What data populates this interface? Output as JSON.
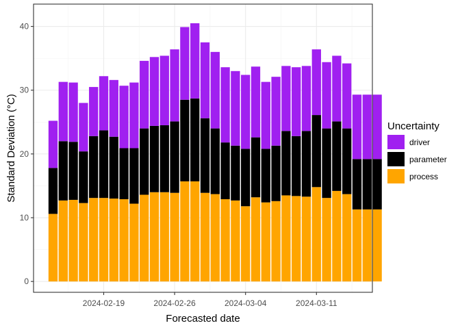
{
  "chart_data": {
    "type": "bar",
    "stacked": true,
    "title": "",
    "xlabel": "Forecasted date",
    "ylabel": "Standard Deviation (°C)",
    "ylim": [
      -1.7,
      43.5
    ],
    "yticks": [
      0,
      10,
      20,
      30,
      40
    ],
    "grid": true,
    "legend_position": "right",
    "legend_title": "Uncertainty",
    "x_tick_labels": [
      "2024-02-19",
      "2024-02-26",
      "2024-03-04",
      "2024-03-11"
    ],
    "x_tick_dates": [
      "2024-02-19",
      "2024-02-26",
      "2024-03-04",
      "2024-03-11"
    ],
    "categories": [
      "2024-02-14",
      "2024-02-15",
      "2024-02-16",
      "2024-02-17",
      "2024-02-18",
      "2024-02-19",
      "2024-02-20",
      "2024-02-21",
      "2024-02-22",
      "2024-02-23",
      "2024-02-24",
      "2024-02-25",
      "2024-02-26",
      "2024-02-27",
      "2024-02-28",
      "2024-02-29",
      "2024-03-01",
      "2024-03-02",
      "2024-03-03",
      "2024-03-04",
      "2024-03-05",
      "2024-03-06",
      "2024-03-07",
      "2024-03-08",
      "2024-03-09",
      "2024-03-10",
      "2024-03-11",
      "2024-03-12",
      "2024-03-13",
      "2024-03-14",
      "2024-03-15",
      "2024-03-16",
      "2024-03-17"
    ],
    "series": [
      {
        "name": "process",
        "color": "#FFA500",
        "values": [
          10.6,
          12.7,
          12.8,
          12.3,
          13.1,
          13.1,
          13.0,
          12.9,
          12.2,
          13.6,
          14.0,
          14.0,
          13.9,
          15.7,
          15.7,
          13.9,
          13.7,
          12.9,
          12.7,
          11.8,
          13.2,
          12.4,
          12.6,
          13.5,
          13.4,
          13.3,
          14.8,
          13.1,
          14.2,
          13.7,
          11.3,
          11.3,
          11.3
        ]
      },
      {
        "name": "parameter",
        "color": "#000000",
        "values": [
          7.2,
          9.3,
          9.1,
          8.1,
          9.7,
          10.6,
          9.7,
          8.0,
          8.7,
          10.4,
          10.4,
          10.5,
          11.2,
          12.8,
          13.0,
          11.7,
          10.3,
          8.9,
          8.6,
          9.0,
          9.4,
          8.4,
          8.7,
          10.1,
          9.4,
          10.3,
          11.3,
          10.9,
          10.9,
          10.3,
          7.9,
          7.9,
          7.9
        ]
      },
      {
        "name": "driver",
        "color": "#A020F0",
        "values": [
          7.4,
          9.3,
          9.3,
          7.6,
          7.7,
          8.5,
          8.9,
          9.8,
          10.3,
          10.6,
          10.8,
          10.9,
          11.3,
          11.4,
          11.8,
          11.9,
          12.0,
          11.8,
          11.7,
          11.6,
          11.1,
          10.5,
          10.8,
          10.2,
          10.8,
          10.2,
          10.3,
          10.4,
          10.3,
          10.2,
          10.1,
          10.1,
          10.1
        ]
      }
    ]
  }
}
